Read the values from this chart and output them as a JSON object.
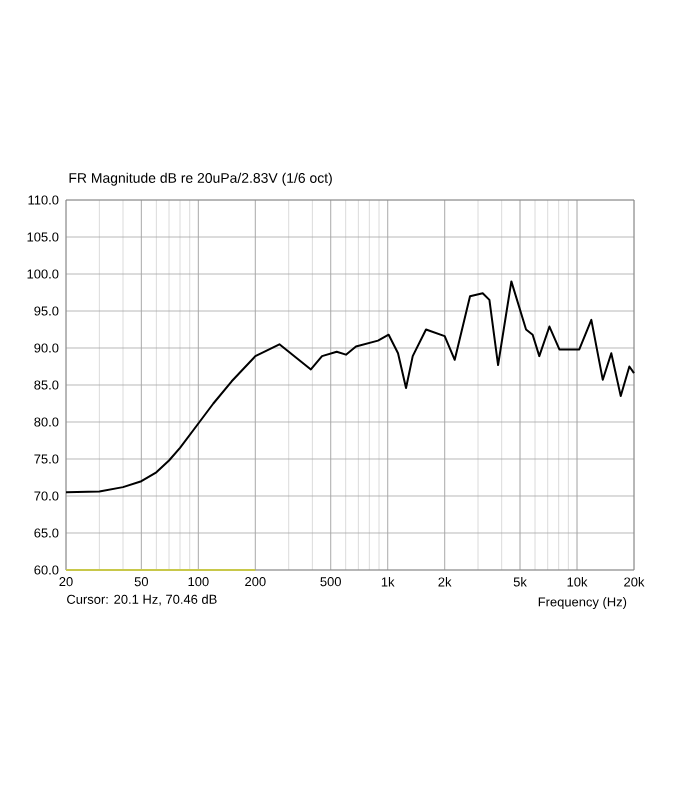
{
  "chart_data": {
    "type": "line",
    "title": "FR Magnitude dB re 20uPa/2.83V (1/6 oct)",
    "xlabel": "Frequency (Hz)",
    "annotations": [
      "Cursor: 20.1 Hz, 70.46 dB"
    ],
    "log": "x",
    "grid": true,
    "marker": "none",
    "line_style": "solid",
    "xlim": [
      20,
      20000
    ],
    "ylim": [
      60,
      110
    ],
    "xticks": [
      20,
      50,
      100,
      200,
      500,
      {
        "value": 1000,
        "label": "1k"
      },
      {
        "value": 2000,
        "label": "2k"
      },
      {
        "value": 5000,
        "label": "5k"
      },
      {
        "value": 10000,
        "label": "10k"
      },
      {
        "value": 20000,
        "label": "20k"
      }
    ],
    "yticks": [
      {
        "value": 60,
        "label": "60.0"
      },
      {
        "value": 65,
        "label": "65.0"
      },
      {
        "value": 70,
        "label": "70.0"
      },
      {
        "value": 75,
        "label": "75.0"
      },
      {
        "value": 80,
        "label": "80.0"
      },
      {
        "value": 85,
        "label": "85.0"
      },
      {
        "value": 90,
        "label": "90.0"
      },
      {
        "value": 95,
        "label": "95.0"
      },
      {
        "value": 100,
        "label": "100.0"
      },
      {
        "value": 105,
        "label": "105.0"
      },
      {
        "value": 110,
        "label": "110.0"
      }
    ],
    "x": [
      20,
      30,
      40,
      50,
      60,
      70,
      80,
      100,
      120,
      150,
      200,
      268,
      393,
      450,
      538,
      602,
      680,
      889,
      1012,
      1134,
      1250,
      1356,
      1594,
      2000,
      2260,
      2722,
      3176,
      3446,
      3829,
      4500,
      5380,
      5830,
      6320,
      7150,
      8070,
      10280,
      11900,
      13680,
      15170,
      17020,
      18900,
      20000
    ],
    "series": [
      {
        "color": "#000000",
        "values": [
          70.5,
          70.6,
          71.2,
          72,
          73.2,
          74.8,
          76.5,
          79.8,
          82.5,
          85.5,
          88.9,
          90.5,
          87.1,
          88.9,
          89.5,
          89.1,
          90.2,
          91,
          91.8,
          89.3,
          84.6,
          88.9,
          92.5,
          91.6,
          88.4,
          97,
          97.4,
          96.5,
          87.7,
          99,
          92.5,
          91.8,
          88.9,
          92.9,
          89.8,
          89.8,
          93.8,
          85.7,
          89.3,
          83.5,
          87.5,
          86.6
        ]
      },
      {
        "color": "#c8c84a",
        "x": [
          20,
          200
        ],
        "values": [
          60,
          60
        ]
      }
    ]
  }
}
